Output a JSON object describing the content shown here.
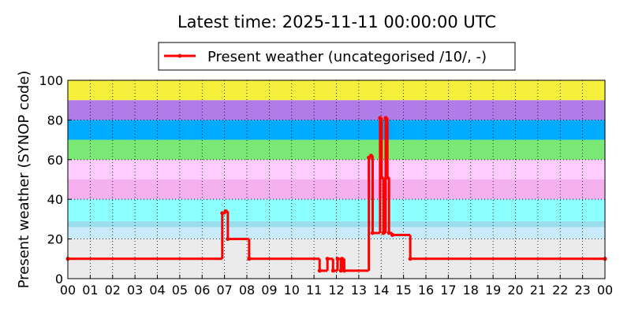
{
  "chart_data": {
    "type": "step",
    "title": "Latest time: 2025-11-11 00:00:00 UTC",
    "y_label": "Present weather (SYNOP code)",
    "x": [
      0,
      6.9,
      7.05,
      7.15,
      8.1,
      11.25,
      11.6,
      11.85,
      12.05,
      12.2,
      12.25,
      12.35,
      13.45,
      13.55,
      13.62,
      13.95,
      14.02,
      14.1,
      14.2,
      14.28,
      14.35,
      14.5,
      15.3,
      24
    ],
    "series": [
      {
        "name": "Present weather (uncategorised /10/, -)",
        "color": "#ff0000",
        "values": [
          10,
          33,
          34,
          20,
          10,
          4,
          10,
          4,
          10,
          4,
          10,
          4,
          61,
          62,
          23,
          81,
          51,
          23,
          81,
          51,
          23,
          22,
          10,
          10
        ]
      }
    ],
    "bands": [
      {
        "from": 0,
        "to": 20,
        "color": "#ebebeb"
      },
      {
        "from": 20,
        "to": 26,
        "color": "#c8ecfb"
      },
      {
        "from": 26,
        "to": 29,
        "color": "#99ddee"
      },
      {
        "from": 29,
        "to": 40,
        "color": "#8cffff"
      },
      {
        "from": 40,
        "to": 50,
        "color": "#f5b0f0"
      },
      {
        "from": 50,
        "to": 60,
        "color": "#ffccff"
      },
      {
        "from": 60,
        "to": 70,
        "color": "#7ae874"
      },
      {
        "from": 70,
        "to": 80,
        "color": "#00aaff"
      },
      {
        "from": 80,
        "to": 90,
        "color": "#b07de8"
      },
      {
        "from": 90,
        "to": 100,
        "color": "#f5f03c"
      }
    ],
    "xlim": [
      0,
      24
    ],
    "xticks": [
      {
        "value": 0,
        "label": "00"
      },
      {
        "value": 1,
        "label": "01"
      },
      {
        "value": 2,
        "label": "02"
      },
      {
        "value": 3,
        "label": "03"
      },
      {
        "value": 4,
        "label": "04"
      },
      {
        "value": 5,
        "label": "05"
      },
      {
        "value": 6,
        "label": "06"
      },
      {
        "value": 7,
        "label": "07"
      },
      {
        "value": 8,
        "label": "08"
      },
      {
        "value": 9,
        "label": "09"
      },
      {
        "value": 10,
        "label": "10"
      },
      {
        "value": 11,
        "label": "11"
      },
      {
        "value": 12,
        "label": "12"
      },
      {
        "value": 13,
        "label": "13"
      },
      {
        "value": 14,
        "label": "14"
      },
      {
        "value": 15,
        "label": "15"
      },
      {
        "value": 16,
        "label": "16"
      },
      {
        "value": 17,
        "label": "17"
      },
      {
        "value": 18,
        "label": "18"
      },
      {
        "value": 19,
        "label": "19"
      },
      {
        "value": 20,
        "label": "20"
      },
      {
        "value": 21,
        "label": "21"
      },
      {
        "value": 22,
        "label": "22"
      },
      {
        "value": 23,
        "label": "23"
      },
      {
        "value": 24,
        "label": "00"
      }
    ],
    "ylim": [
      0,
      100
    ],
    "yticks": [
      0,
      20,
      40,
      60,
      80,
      100
    ],
    "grid": true,
    "legend": "top"
  }
}
